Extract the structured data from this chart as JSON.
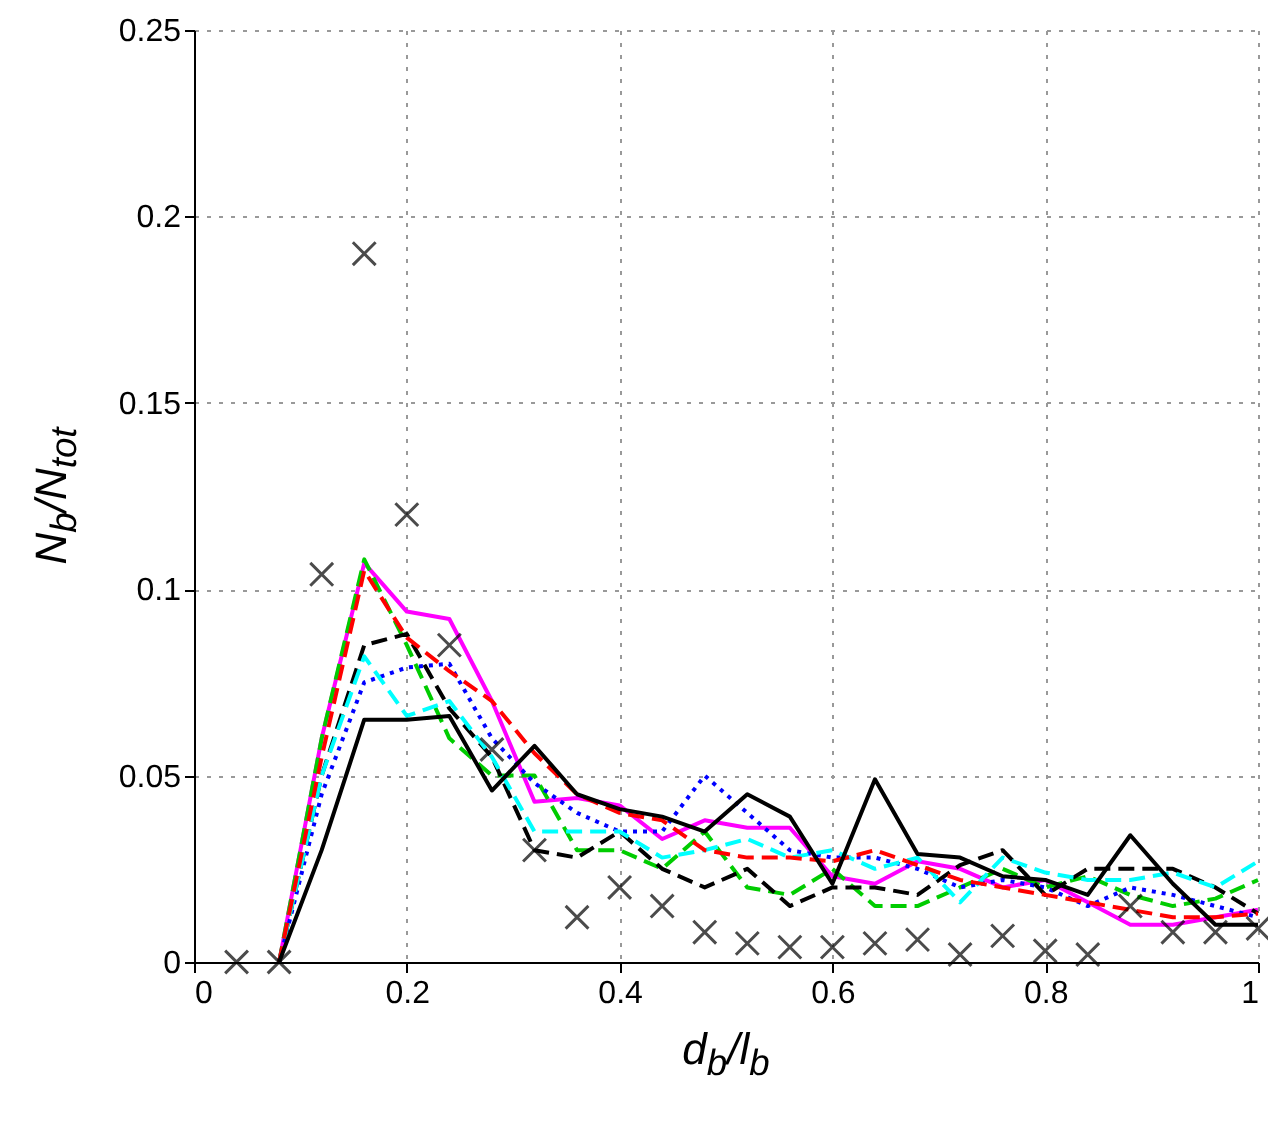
{
  "chart_data": {
    "type": "line",
    "xlabel": "d$_{b}$/l$_{b}$",
    "ylabel": "N$_{b}$/N$_{tot}$",
    "xlim": [
      0,
      1
    ],
    "ylim": [
      0,
      0.25
    ],
    "xticks": [
      0,
      0.2,
      0.4,
      0.6,
      0.8,
      1
    ],
    "yticks": [
      0,
      0.05,
      0.1,
      0.15,
      0.2,
      0.25
    ],
    "grid": true,
    "x": [
      0.08,
      0.12,
      0.16,
      0.2,
      0.24,
      0.28,
      0.32,
      0.36,
      0.4,
      0.44,
      0.48,
      0.52,
      0.56,
      0.6,
      0.64,
      0.68,
      0.72,
      0.76,
      0.8,
      0.84,
      0.88,
      0.92,
      0.96,
      1.0
    ],
    "series": [
      {
        "color": "#ff00ff",
        "line_style": "solid",
        "values": [
          0,
          0.06,
          0.107,
          0.094,
          0.092,
          0.07,
          0.043,
          0.044,
          0.042,
          0.033,
          0.038,
          0.036,
          0.036,
          0.023,
          0.021,
          0.027,
          0.025,
          0.02,
          0.022,
          0.016,
          0.01,
          0.01,
          0.012,
          0.014
        ]
      },
      {
        "color": "#00cc00",
        "line_style": "dashed",
        "values": [
          0,
          0.06,
          0.108,
          0.085,
          0.06,
          0.05,
          0.05,
          0.03,
          0.03,
          0.025,
          0.035,
          0.02,
          0.018,
          0.025,
          0.015,
          0.015,
          0.02,
          0.025,
          0.02,
          0.023,
          0.018,
          0.015,
          0.017,
          0.022
        ]
      },
      {
        "color": "#0000ff",
        "line_style": "dotted",
        "values": [
          0,
          0.045,
          0.075,
          0.079,
          0.08,
          0.06,
          0.048,
          0.04,
          0.035,
          0.035,
          0.05,
          0.04,
          0.03,
          0.028,
          0.028,
          0.025,
          0.02,
          0.022,
          0.02,
          0.015,
          0.02,
          0.018,
          0.015,
          0.012
        ]
      },
      {
        "color": "#000000",
        "line_style": "dashed",
        "values": [
          0,
          0.05,
          0.085,
          0.088,
          0.068,
          0.055,
          0.03,
          0.028,
          0.035,
          0.025,
          0.02,
          0.025,
          0.015,
          0.02,
          0.02,
          0.018,
          0.026,
          0.03,
          0.018,
          0.025,
          0.025,
          0.025,
          0.02,
          0.013
        ]
      },
      {
        "color": "#00ffff",
        "line_style": "dashed",
        "values": [
          0,
          0.05,
          0.082,
          0.066,
          0.07,
          0.055,
          0.035,
          0.035,
          0.035,
          0.028,
          0.03,
          0.033,
          0.028,
          0.03,
          0.025,
          0.028,
          0.016,
          0.028,
          0.024,
          0.022,
          0.022,
          0.024,
          0.02,
          0.027
        ]
      },
      {
        "color": "#ff0000",
        "line_style": "dashed",
        "values": [
          0,
          0.055,
          0.105,
          0.087,
          0.078,
          0.07,
          0.056,
          0.045,
          0.04,
          0.038,
          0.03,
          0.028,
          0.028,
          0.027,
          0.03,
          0.026,
          0.022,
          0.02,
          0.018,
          0.016,
          0.014,
          0.012,
          0.012,
          0.013
        ]
      },
      {
        "color": "#000000",
        "line_style": "solid",
        "values": [
          0,
          0.03,
          0.065,
          0.065,
          0.066,
          0.046,
          0.058,
          0.045,
          0.041,
          0.039,
          0.035,
          0.045,
          0.039,
          0.021,
          0.049,
          0.029,
          0.028,
          0.023,
          0.022,
          0.018,
          0.034,
          0.021,
          0.01,
          0.01
        ]
      },
      {
        "type": "scatter",
        "marker": "cross",
        "color": "#000000",
        "x": [
          0.04,
          0.08,
          0.12,
          0.16,
          0.2,
          0.24,
          0.28,
          0.32,
          0.36,
          0.4,
          0.44,
          0.48,
          0.52,
          0.56,
          0.6,
          0.64,
          0.68,
          0.72,
          0.76,
          0.8,
          0.84,
          0.88,
          0.92,
          0.96,
          1.0
        ],
        "values": [
          0,
          0,
          0.104,
          0.19,
          0.12,
          0.085,
          0.057,
          0.03,
          0.012,
          0.02,
          0.015,
          0.008,
          0.005,
          0.004,
          0.004,
          0.005,
          0.006,
          0.002,
          0.007,
          0.003,
          0.002,
          0.015,
          0.008,
          0.008,
          0.009
        ]
      }
    ]
  }
}
